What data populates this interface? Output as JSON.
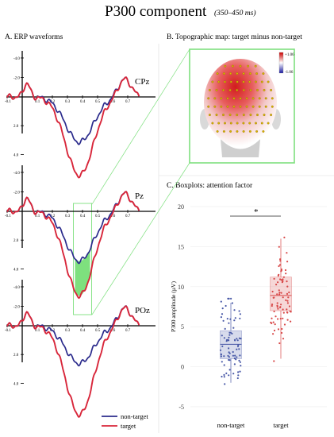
{
  "title": {
    "main": "P300 component",
    "sub": "(350–450 ms)"
  },
  "panels": {
    "a": "A. ERP waveforms",
    "b": "B. Topographic map: target minus non-target",
    "c": "C. Boxplots: attention factor"
  },
  "erp": {
    "electrodes": [
      "CPz",
      "Pz",
      "POz"
    ],
    "x_ticks": [
      "-0.1",
      "0",
      "0.1",
      "0.2",
      "0.3",
      "0.4",
      "0.5",
      "0.6",
      "0.7"
    ],
    "y_ticks": [
      "-4.0",
      "-2.0",
      "2.0",
      "4.0"
    ],
    "highlight_window_ms": [
      350,
      450
    ],
    "colors": {
      "non_target": "#2b2b8c",
      "target": "#d8263a",
      "window": "#7ee07e"
    },
    "legend": {
      "non_target": "non-target",
      "target": "target"
    }
  },
  "topo": {
    "scale_max": "+1.06",
    "scale_min": "-1.06"
  },
  "chart_data": {
    "type": "box",
    "title": "",
    "xlabel": "",
    "ylabel": "P300 amplitude (µV)",
    "categories": [
      "non-target",
      "target"
    ],
    "ylim": [
      -6,
      21
    ],
    "yticks": [
      "-5",
      "0",
      "5",
      "10",
      "15",
      "20"
    ],
    "significance": "*",
    "boxes": [
      {
        "name": "non-target",
        "q1": 1.0,
        "median": 2.8,
        "q3": 4.5,
        "whisker_low": -2.0,
        "whisker_high": 8.0,
        "color": "#4a5aa8"
      },
      {
        "name": "target",
        "q1": 7.0,
        "median": 8.9,
        "q3": 11.2,
        "whisker_low": 1.0,
        "whisker_high": 16.0,
        "color": "#d84848"
      }
    ]
  }
}
